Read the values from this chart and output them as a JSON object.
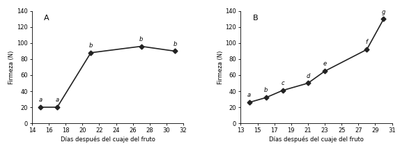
{
  "panel_A": {
    "label": "A",
    "x": [
      15,
      17,
      21,
      27,
      31
    ],
    "y": [
      20,
      20,
      88,
      96,
      90
    ],
    "annotations": [
      "a",
      "a",
      "b",
      "b",
      "b"
    ],
    "ann_dx": [
      0,
      0,
      0,
      0,
      0
    ],
    "ann_dy": [
      5,
      5,
      5,
      5,
      5
    ],
    "xlim": [
      14,
      32
    ],
    "xticks": [
      14,
      16,
      18,
      20,
      22,
      24,
      26,
      28,
      30,
      32
    ],
    "ylim": [
      0,
      140
    ],
    "yticks": [
      0,
      20,
      40,
      60,
      80,
      100,
      120,
      140
    ],
    "xlabel": "Días después del cuaje del fruto",
    "ylabel": "Firmeza (N)"
  },
  "panel_B": {
    "label": "B",
    "x": [
      14,
      16,
      18,
      21,
      23,
      28,
      30
    ],
    "y": [
      26,
      32,
      41,
      50,
      65,
      92,
      130
    ],
    "annotations": [
      "a",
      "b",
      "c",
      "d",
      "e",
      "f",
      "g"
    ],
    "ann_dx": [
      0,
      0,
      0,
      0,
      0,
      0,
      0
    ],
    "ann_dy": [
      5,
      5,
      5,
      5,
      5,
      5,
      5
    ],
    "xlim": [
      13,
      31
    ],
    "xticks": [
      13,
      15,
      17,
      19,
      21,
      23,
      25,
      27,
      29,
      31
    ],
    "ylim": [
      0,
      140
    ],
    "yticks": [
      0,
      20,
      40,
      60,
      80,
      100,
      120,
      140
    ],
    "xlabel": "Días después del cuaje del fruto",
    "ylabel": "Firmeza (N)"
  },
  "line_color": "#222222",
  "marker": "D",
  "markersize": 3.5,
  "linewidth": 1.2,
  "tick_fontsize": 6,
  "label_fontsize": 6,
  "ann_fontsize": 6,
  "panel_label_fontsize": 8
}
